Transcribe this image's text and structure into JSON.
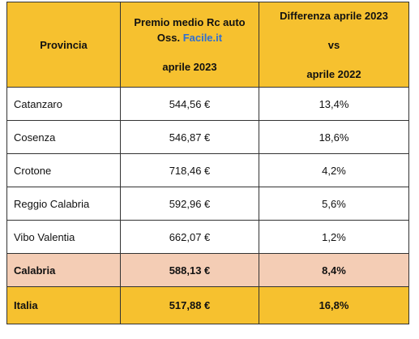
{
  "table": {
    "header": {
      "provincia": "Provincia",
      "premio": {
        "line1": "Premio medio Rc auto",
        "line2_prefix": "Oss.",
        "line2_brand": "Facile.it",
        "line3": "aprile 2023"
      },
      "differenza": {
        "line1": "Differenza aprile 2023",
        "line2": "vs",
        "line3": "aprile 2022"
      }
    },
    "rows": [
      [
        "Catanzaro",
        "544,56 €",
        "13,4%"
      ],
      [
        "Cosenza",
        "546,87 €",
        "18,6%"
      ],
      [
        "Crotone",
        "718,46 €",
        "4,2%"
      ],
      [
        "Reggio Calabria",
        "592,96 €",
        "5,6%"
      ],
      [
        "Vibo Valentia",
        "662,07 €",
        "1,2%"
      ],
      [
        "Calabria",
        "588,13 €",
        "8,4%"
      ],
      [
        "Italia",
        "517,88 €",
        "16,8%"
      ]
    ]
  }
}
